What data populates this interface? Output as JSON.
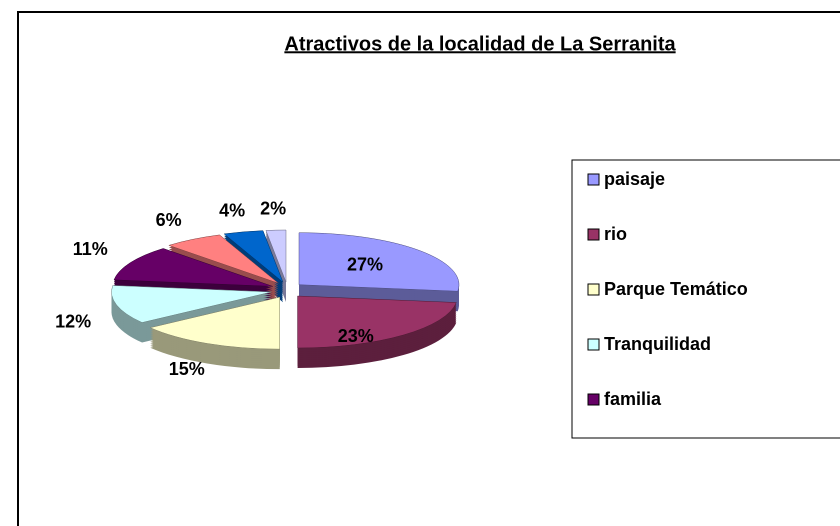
{
  "chart_data": {
    "type": "pie",
    "title": "Atractivos de la localidad de La Serranita",
    "categories": [
      "paisaje",
      "rio",
      "Parque Temático",
      "Tranquilidad",
      "familia",
      null,
      null,
      null
    ],
    "values": [
      27,
      23,
      15,
      12,
      11,
      6,
      4,
      2
    ],
    "value_labels": [
      "27%",
      "23%",
      "15%",
      "12%",
      "11%",
      "6%",
      "4%",
      "2%"
    ],
    "colors": [
      "#9999ff",
      "#993366",
      "#ffffcc",
      "#ccffff",
      "#660066",
      "#ff8080",
      "#0066cc",
      "#ccccff"
    ],
    "legend": "right"
  }
}
